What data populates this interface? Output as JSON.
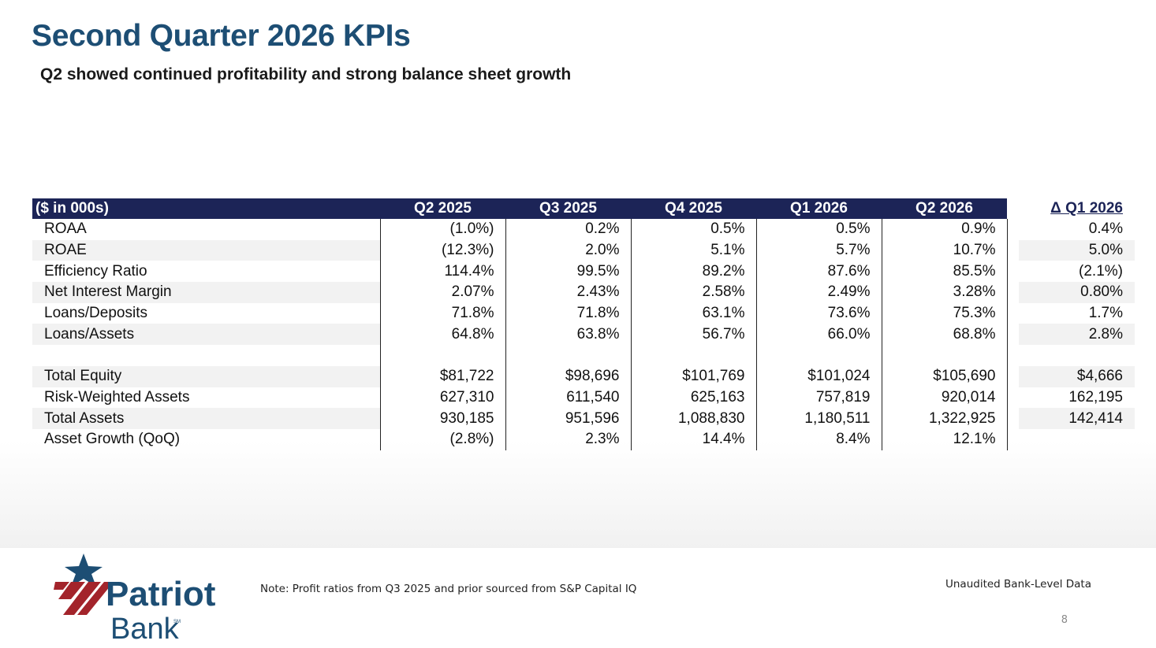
{
  "title": "Second Quarter 2026 KPIs",
  "subtitle": "Q2 showed continued profitability and strong balance sheet growth",
  "table": {
    "header": {
      "label": "($ in 000s)",
      "periods": [
        "Q2 2025",
        "Q3 2025",
        "Q4 2025",
        "Q1 2026",
        "Q2 2026"
      ],
      "delta": "Δ Q1 2026"
    },
    "rows": [
      {
        "label": "ROAA",
        "values": [
          "(1.0%)",
          "0.2%",
          "0.5%",
          "0.5%",
          "0.9%"
        ],
        "delta": "0.4%"
      },
      {
        "label": "ROAE",
        "values": [
          "(12.3%)",
          "2.0%",
          "5.1%",
          "5.7%",
          "10.7%"
        ],
        "delta": "5.0%"
      },
      {
        "label": "Efficiency Ratio",
        "values": [
          "114.4%",
          "99.5%",
          "89.2%",
          "87.6%",
          "85.5%"
        ],
        "delta": "(2.1%)"
      },
      {
        "label": "Net Interest Margin",
        "values": [
          "2.07%",
          "2.43%",
          "2.58%",
          "2.49%",
          "3.28%"
        ],
        "delta": "0.80%"
      },
      {
        "label": "Loans/Deposits",
        "values": [
          "71.8%",
          "71.8%",
          "63.1%",
          "73.6%",
          "75.3%"
        ],
        "delta": "1.7%"
      },
      {
        "label": "Loans/Assets",
        "values": [
          "64.8%",
          "63.8%",
          "56.7%",
          "66.0%",
          "68.8%"
        ],
        "delta": "2.8%"
      },
      {
        "label": "",
        "values": [
          "",
          "",
          "",
          "",
          ""
        ],
        "delta": ""
      },
      {
        "label": "Total Equity",
        "values": [
          "$81,722",
          "$98,696",
          "$101,769",
          "$101,024",
          "$105,690"
        ],
        "delta": "$4,666"
      },
      {
        "label": "Risk-Weighted Assets",
        "values": [
          "627,310",
          "611,540",
          "625,163",
          "757,819",
          "920,014"
        ],
        "delta": "162,195"
      },
      {
        "label": "Total Assets",
        "values": [
          "930,185",
          "951,596",
          "1,088,830",
          "1,180,511",
          "1,322,925"
        ],
        "delta": "142,414"
      },
      {
        "label": "Asset Growth (QoQ)",
        "values": [
          "(2.8%)",
          "2.3%",
          "14.4%",
          "8.4%",
          "12.1%"
        ],
        "delta": ""
      }
    ]
  },
  "logo": {
    "line1": "Patriot",
    "line2": "Bank",
    "mark": "SM"
  },
  "colors": {
    "title": "#1d4e74",
    "header_bg": "#1c2457",
    "logo_blue": "#1d4e74",
    "logo_red": "#a3242b"
  },
  "note": "Note: Profit ratios from Q3 2025 and prior sourced from S&P Capital IQ",
  "unaudited": "Unaudited Bank-Level Data",
  "page_number": "8"
}
